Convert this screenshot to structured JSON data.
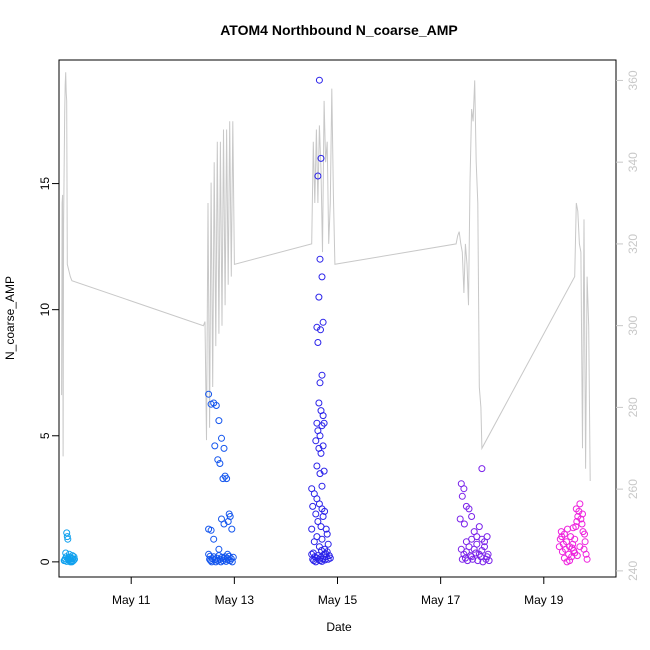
{
  "chart_data": {
    "type": "scatter",
    "title": "ATOM4 Northbound N_coarse_AMP",
    "xlabel": "Date",
    "ylabel": "N_coarse_AMP",
    "x_unit": "date (May)",
    "xlim": [
      9.6,
      20.4
    ],
    "ylim": [
      -0.6,
      19.9
    ],
    "y2lim": [
      238.5,
      365
    ],
    "x_ticks": [
      {
        "value": 11,
        "label": "May 11"
      },
      {
        "value": 13,
        "label": "May 13"
      },
      {
        "value": 15,
        "label": "May 15"
      },
      {
        "value": 17,
        "label": "May 17"
      },
      {
        "value": 19,
        "label": "May 19"
      }
    ],
    "y_ticks": [
      {
        "value": 0,
        "label": "0"
      },
      {
        "value": 5,
        "label": "5"
      },
      {
        "value": 10,
        "label": "10"
      },
      {
        "value": 15,
        "label": "15"
      }
    ],
    "y2_ticks": [
      {
        "value": 240,
        "label": "240"
      },
      {
        "value": 260,
        "label": "260"
      },
      {
        "value": 280,
        "label": "280"
      },
      {
        "value": 300,
        "label": "300"
      },
      {
        "value": 320,
        "label": "320"
      },
      {
        "value": 340,
        "label": "340"
      },
      {
        "value": 360,
        "label": "360"
      }
    ],
    "grid": false,
    "legend": "none",
    "line_color": "#c8c8c8",
    "series": [
      {
        "color": "#0fa0ee",
        "points": [
          [
            9.7,
            0.05
          ],
          [
            9.72,
            0.12
          ],
          [
            9.74,
            0.2
          ],
          [
            9.75,
            1.15
          ],
          [
            9.76,
            1.0
          ],
          [
            9.77,
            0.9
          ],
          [
            9.78,
            0.1
          ],
          [
            9.8,
            0.3
          ],
          [
            9.82,
            0.0
          ],
          [
            9.84,
            0.15
          ],
          [
            9.86,
            0.25
          ],
          [
            9.88,
            0.05
          ],
          [
            9.9,
            0.1
          ],
          [
            9.75,
            0.02
          ],
          [
            9.73,
            0.35
          ],
          [
            9.79,
            0.08
          ],
          [
            9.81,
            0.18
          ],
          [
            9.83,
            0.05
          ],
          [
            9.85,
            0.0
          ],
          [
            9.87,
            0.12
          ],
          [
            9.71,
            0.06
          ],
          [
            9.89,
            0.2
          ],
          [
            9.77,
            0.15
          ]
        ]
      },
      {
        "color": "#1456ee",
        "points": [
          [
            12.5,
            6.65
          ],
          [
            12.55,
            6.25
          ],
          [
            12.6,
            6.3
          ],
          [
            12.65,
            6.2
          ],
          [
            12.7,
            5.6
          ],
          [
            12.75,
            4.9
          ],
          [
            12.62,
            4.6
          ],
          [
            12.68,
            4.05
          ],
          [
            12.72,
            3.9
          ],
          [
            12.8,
            4.5
          ],
          [
            12.85,
            3.3
          ],
          [
            12.78,
            3.3
          ],
          [
            12.82,
            3.4
          ],
          [
            12.9,
            1.9
          ],
          [
            12.88,
            1.6
          ],
          [
            12.92,
            1.8
          ],
          [
            12.95,
            1.3
          ],
          [
            12.5,
            1.3
          ],
          [
            12.55,
            1.25
          ],
          [
            12.6,
            0.9
          ],
          [
            12.7,
            0.5
          ],
          [
            12.75,
            1.7
          ],
          [
            12.8,
            1.5
          ],
          [
            12.5,
            0.3
          ],
          [
            12.52,
            0.1
          ],
          [
            12.54,
            0.05
          ],
          [
            12.56,
            0.0
          ],
          [
            12.58,
            0.12
          ],
          [
            12.6,
            0.2
          ],
          [
            12.62,
            0.08
          ],
          [
            12.64,
            0.0
          ],
          [
            12.66,
            0.15
          ],
          [
            12.68,
            0.05
          ],
          [
            12.7,
            0.25
          ],
          [
            12.72,
            0.1
          ],
          [
            12.74,
            0.0
          ],
          [
            12.76,
            0.18
          ],
          [
            12.78,
            0.05
          ],
          [
            12.8,
            0.12
          ],
          [
            12.82,
            0.2
          ],
          [
            12.84,
            0.02
          ],
          [
            12.86,
            0.15
          ],
          [
            12.88,
            0.08
          ],
          [
            12.9,
            0.22
          ],
          [
            12.92,
            0.05
          ],
          [
            12.94,
            0.12
          ],
          [
            12.96,
            0.0
          ],
          [
            12.98,
            0.18
          ],
          [
            12.53,
            0.22
          ],
          [
            12.87,
            0.3
          ]
        ]
      },
      {
        "color": "#2a22ea",
        "points": [
          [
            14.65,
            19.1
          ],
          [
            14.68,
            16.0
          ],
          [
            14.62,
            15.3
          ],
          [
            14.66,
            12.0
          ],
          [
            14.7,
            11.3
          ],
          [
            14.64,
            10.5
          ],
          [
            14.72,
            9.5
          ],
          [
            14.6,
            9.3
          ],
          [
            14.67,
            9.2
          ],
          [
            14.62,
            8.7
          ],
          [
            14.7,
            7.4
          ],
          [
            14.66,
            7.1
          ],
          [
            14.64,
            6.3
          ],
          [
            14.68,
            6.0
          ],
          [
            14.72,
            5.8
          ],
          [
            14.6,
            5.5
          ],
          [
            14.62,
            5.2
          ],
          [
            14.66,
            5.0
          ],
          [
            14.7,
            5.4
          ],
          [
            14.74,
            5.5
          ],
          [
            14.58,
            4.8
          ],
          [
            14.64,
            4.5
          ],
          [
            14.68,
            4.3
          ],
          [
            14.72,
            4.6
          ],
          [
            14.6,
            3.8
          ],
          [
            14.66,
            3.5
          ],
          [
            14.7,
            3.0
          ],
          [
            14.74,
            3.6
          ],
          [
            14.5,
            2.9
          ],
          [
            14.55,
            2.7
          ],
          [
            14.6,
            2.5
          ],
          [
            14.65,
            2.3
          ],
          [
            14.7,
            2.1
          ],
          [
            14.75,
            2.0
          ],
          [
            14.52,
            2.2
          ],
          [
            14.58,
            1.9
          ],
          [
            14.62,
            1.6
          ],
          [
            14.68,
            1.4
          ],
          [
            14.72,
            1.8
          ],
          [
            14.78,
            1.3
          ],
          [
            14.5,
            1.3
          ],
          [
            14.55,
            0.8
          ],
          [
            14.6,
            1.0
          ],
          [
            14.65,
            0.6
          ],
          [
            14.7,
            0.9
          ],
          [
            14.75,
            0.5
          ],
          [
            14.8,
            1.1
          ],
          [
            14.82,
            0.7
          ],
          [
            14.5,
            0.3
          ],
          [
            14.52,
            0.1
          ],
          [
            14.54,
            0.05
          ],
          [
            14.56,
            0.2
          ],
          [
            14.58,
            0.0
          ],
          [
            14.6,
            0.15
          ],
          [
            14.62,
            0.25
          ],
          [
            14.64,
            0.1
          ],
          [
            14.66,
            0.05
          ],
          [
            14.68,
            0.18
          ],
          [
            14.7,
            0.02
          ],
          [
            14.72,
            0.12
          ],
          [
            14.74,
            0.3
          ],
          [
            14.76,
            0.08
          ],
          [
            14.78,
            0.2
          ],
          [
            14.8,
            0.4
          ],
          [
            14.82,
            0.1
          ],
          [
            14.84,
            0.25
          ],
          [
            14.86,
            0.15
          ],
          [
            14.53,
            0.35
          ],
          [
            14.69,
            0.45
          ],
          [
            14.77,
            0.33
          ]
        ]
      },
      {
        "color": "#7a22ea",
        "points": [
          [
            17.4,
            3.1
          ],
          [
            17.45,
            2.9
          ],
          [
            17.42,
            2.6
          ],
          [
            17.8,
            3.7
          ],
          [
            17.5,
            2.2
          ],
          [
            17.55,
            2.1
          ],
          [
            17.38,
            1.7
          ],
          [
            17.46,
            1.5
          ],
          [
            17.6,
            1.8
          ],
          [
            17.65,
            1.2
          ],
          [
            17.7,
            1.0
          ],
          [
            17.75,
            1.4
          ],
          [
            17.8,
            0.9
          ],
          [
            17.85,
            0.8
          ],
          [
            17.9,
            1.0
          ],
          [
            17.4,
            0.5
          ],
          [
            17.45,
            0.3
          ],
          [
            17.5,
            0.4
          ],
          [
            17.55,
            0.6
          ],
          [
            17.6,
            0.2
          ],
          [
            17.65,
            0.5
          ],
          [
            17.7,
            0.7
          ],
          [
            17.75,
            0.3
          ],
          [
            17.8,
            0.45
          ],
          [
            17.85,
            0.6
          ],
          [
            17.9,
            0.2
          ],
          [
            17.42,
            0.1
          ],
          [
            17.48,
            0.15
          ],
          [
            17.52,
            0.05
          ],
          [
            17.58,
            0.25
          ],
          [
            17.62,
            0.1
          ],
          [
            17.68,
            0.35
          ],
          [
            17.72,
            0.05
          ],
          [
            17.78,
            0.2
          ],
          [
            17.82,
            0.0
          ],
          [
            17.88,
            0.1
          ],
          [
            17.92,
            0.3
          ],
          [
            17.94,
            0.05
          ],
          [
            17.5,
            0.8
          ],
          [
            17.6,
            0.9
          ]
        ]
      },
      {
        "color": "#ee22dd",
        "points": [
          [
            19.3,
            0.6
          ],
          [
            19.32,
            0.9
          ],
          [
            19.34,
            1.2
          ],
          [
            19.36,
            0.4
          ],
          [
            19.38,
            0.7
          ],
          [
            19.4,
            1.1
          ],
          [
            19.42,
            0.5
          ],
          [
            19.44,
            0.8
          ],
          [
            19.46,
            1.3
          ],
          [
            19.48,
            0.3
          ],
          [
            19.5,
            0.6
          ],
          [
            19.52,
            1.0
          ],
          [
            19.54,
            0.2
          ],
          [
            19.56,
            0.7
          ],
          [
            19.58,
            0.45
          ],
          [
            19.6,
            0.9
          ],
          [
            19.62,
            1.4
          ],
          [
            19.64,
            1.6
          ],
          [
            19.66,
            1.8
          ],
          [
            19.68,
            2.0
          ],
          [
            19.7,
            2.3
          ],
          [
            19.72,
            1.7
          ],
          [
            19.74,
            1.5
          ],
          [
            19.76,
            1.2
          ],
          [
            19.78,
            0.5
          ],
          [
            19.8,
            0.8
          ],
          [
            19.82,
            0.3
          ],
          [
            19.84,
            0.1
          ],
          [
            19.5,
            0.05
          ],
          [
            19.4,
            0.15
          ],
          [
            19.6,
            0.35
          ],
          [
            19.7,
            0.6
          ],
          [
            19.55,
            0.55
          ],
          [
            19.65,
            0.25
          ],
          [
            19.45,
            0.0
          ],
          [
            19.35,
            1.0
          ],
          [
            19.75,
            1.9
          ],
          [
            19.79,
            1.1
          ],
          [
            19.63,
            2.1
          ],
          [
            19.57,
            1.35
          ]
        ]
      }
    ],
    "line_series": {
      "name": "",
      "x": [
        9.65,
        9.66,
        9.67,
        9.68,
        9.69,
        9.7,
        9.71,
        9.72,
        9.73,
        9.74,
        9.75,
        9.76,
        9.78,
        9.8,
        9.82,
        9.85,
        12.4,
        12.43,
        12.46,
        12.49,
        12.52,
        12.55,
        12.58,
        12.61,
        12.64,
        12.67,
        12.7,
        12.73,
        12.76,
        12.79,
        12.82,
        12.85,
        12.88,
        12.91,
        12.94,
        12.97,
        13.0,
        14.5,
        14.53,
        14.56,
        14.59,
        14.62,
        14.65,
        14.68,
        14.71,
        14.74,
        14.77,
        14.8,
        14.83,
        14.86,
        14.89,
        14.92,
        14.95,
        17.3,
        17.33,
        17.36,
        17.39,
        17.42,
        17.45,
        17.48,
        17.51,
        17.54,
        17.57,
        17.6,
        17.63,
        17.66,
        17.69,
        17.72,
        17.75,
        17.78,
        17.8,
        19.6,
        19.63,
        19.66,
        19.69,
        19.72,
        19.75,
        19.78,
        19.81,
        19.84,
        19.87,
        19.9
      ],
      "y": [
        283,
        330,
        332,
        268,
        325,
        340,
        352,
        359,
        362,
        357,
        355,
        315,
        314,
        313,
        312,
        311,
        300,
        301,
        272,
        330,
        275,
        335,
        285,
        340,
        295,
        345,
        298,
        345,
        300,
        348,
        305,
        348,
        310,
        350,
        312,
        350,
        315,
        320,
        345,
        330,
        348,
        330,
        349,
        338,
        318,
        355,
        340,
        345,
        320,
        330,
        358,
        332,
        315,
        320,
        322,
        323,
        320,
        318,
        308,
        320,
        315,
        305,
        335,
        353,
        350,
        360,
        340,
        330,
        285,
        280,
        270,
        312,
        330,
        328,
        320,
        318,
        270,
        326,
        265,
        312,
        300,
        262
      ]
    }
  }
}
